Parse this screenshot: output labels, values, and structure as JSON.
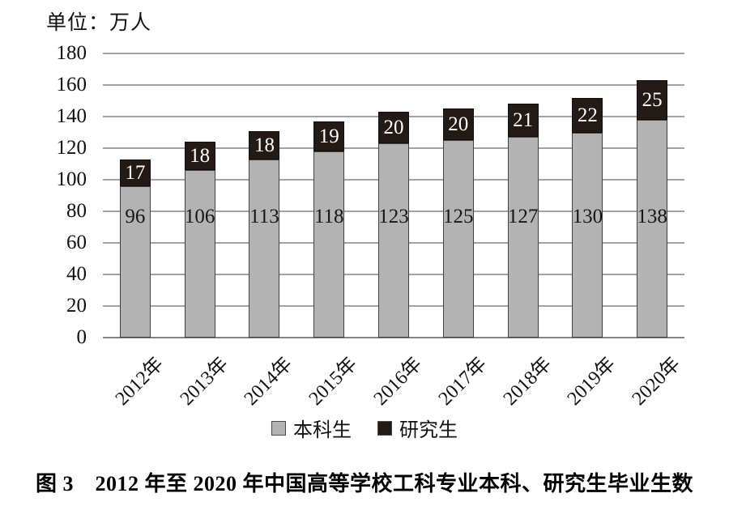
{
  "unit_label": "单位：万人",
  "caption": "图 3　2012 年至 2020 年中国高等学校工科专业本科、研究生毕业生数",
  "legend": {
    "items": [
      {
        "label": "本科生",
        "color": "#b3b3b3",
        "swatch": "gray-square"
      },
      {
        "label": "研究生",
        "color": "#231a16",
        "swatch": "black-square"
      }
    ]
  },
  "chart_data": {
    "type": "bar",
    "stacked": true,
    "title": "图 3　2012 年至 2020 年中国高等学校工科专业本科、研究生毕业生数",
    "unit": "万人",
    "categories": [
      "2012年",
      "2013年",
      "2014年",
      "2015年",
      "2016年",
      "2017年",
      "2018年",
      "2019年",
      "2020年"
    ],
    "series": [
      {
        "name": "本科生",
        "color": "#b3b3b3",
        "values": [
          96,
          106,
          113,
          118,
          123,
          125,
          127,
          130,
          138
        ]
      },
      {
        "name": "研究生",
        "color": "#231a16",
        "values": [
          17,
          18,
          18,
          19,
          20,
          20,
          21,
          22,
          25
        ]
      }
    ],
    "ylim": [
      0,
      180
    ],
    "yticks": [
      180,
      160,
      140,
      120,
      100,
      80,
      60,
      40,
      20,
      0
    ],
    "grid": true,
    "gridline_color": "#a3a3a3",
    "axis_color": "#858585",
    "bar_border_color": "#3f3f3f",
    "legend_position": "bottom",
    "xlabel_rotation_deg": -45
  }
}
